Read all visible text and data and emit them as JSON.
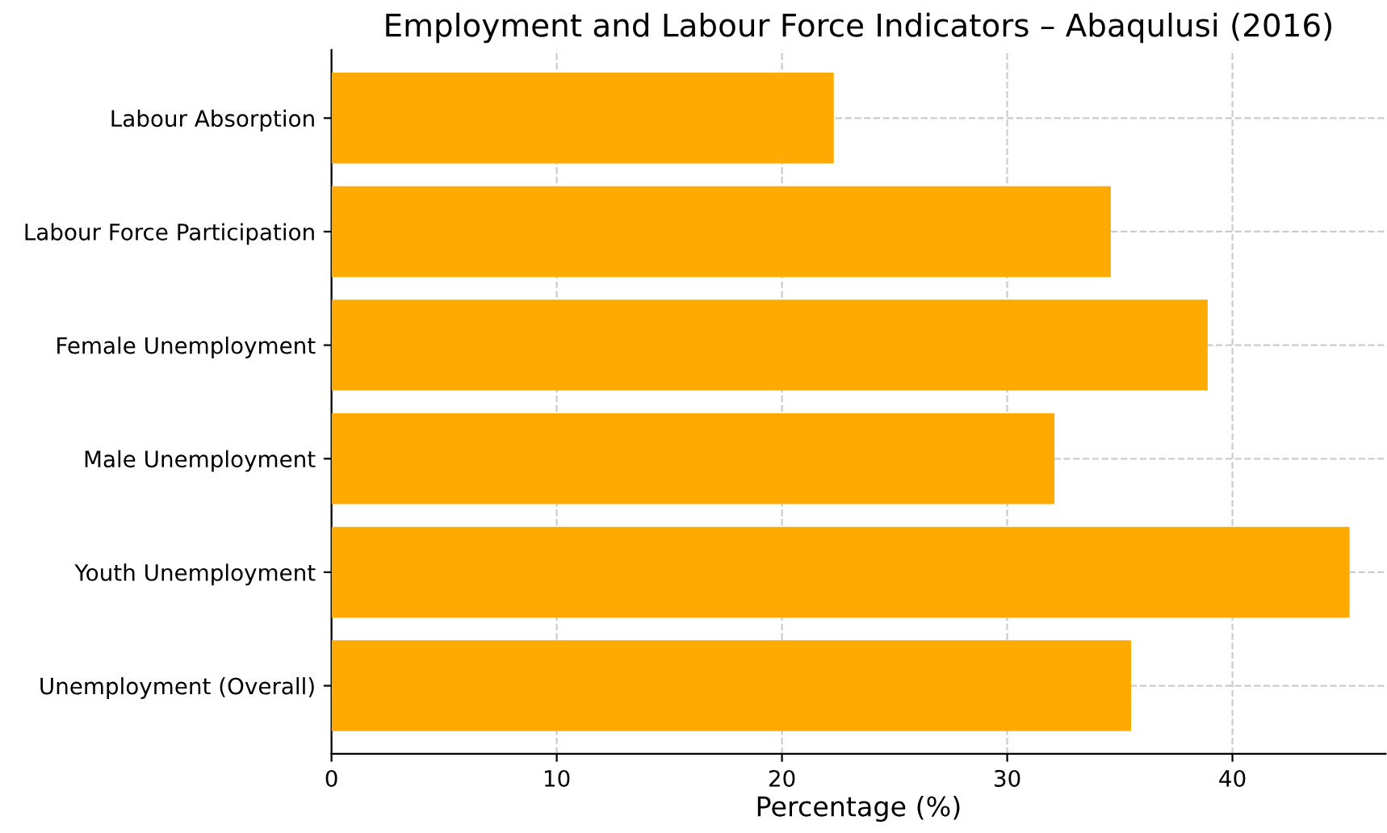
{
  "chart_data": {
    "type": "bar",
    "orientation": "horizontal",
    "title": "Employment and Labour Force Indicators – Abaqulusi (2016)",
    "xlabel": "Percentage (%)",
    "categories": [
      "Labour Absorption",
      "Labour Force Participation",
      "Female Unemployment",
      "Male Unemployment",
      "Youth Unemployment",
      "Unemployment (Overall)"
    ],
    "values": [
      22.3,
      34.6,
      38.9,
      32.1,
      45.2,
      35.5
    ],
    "color": "#ffaa00",
    "xlim": [
      0,
      46.8
    ],
    "xticks": [
      0,
      10,
      20,
      30,
      40
    ],
    "grid": true
  }
}
